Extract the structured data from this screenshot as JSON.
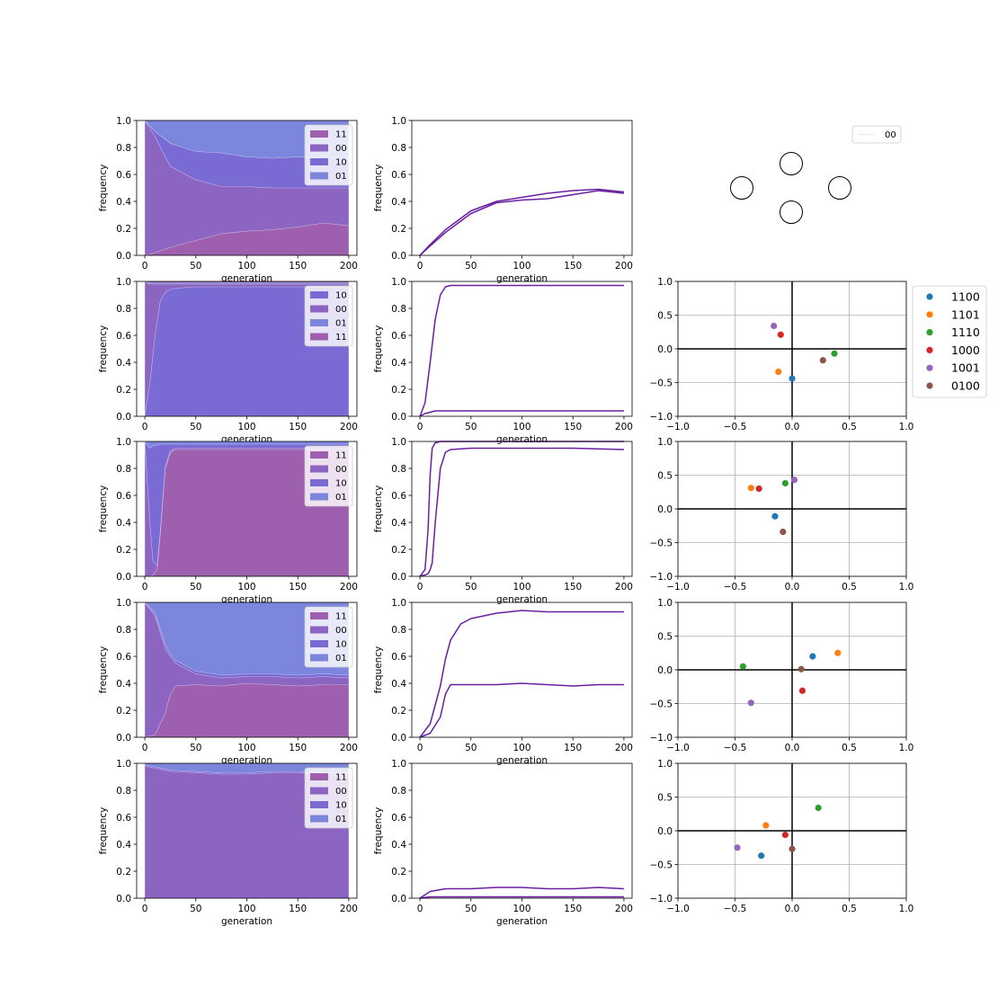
{
  "figure": {
    "xlabel": "generation",
    "ylabel": "frequency"
  },
  "colors": {
    "11": "#9e5fae",
    "00": "#8c64c2",
    "10": "#7a6bd4",
    "01": "#7c86dc",
    "line": "#6a1fa0",
    "scatter": {
      "1100": "#1f77b4",
      "1101": "#ff7f0e",
      "1110": "#2ca02c",
      "1000": "#d62728",
      "1001": "#9467bd",
      "0100": "#8c564b"
    }
  },
  "network_panel": {
    "legend": [
      "00"
    ],
    "nodes": 4
  },
  "scatter_legend": [
    "1100",
    "1101",
    "1110",
    "1000",
    "1001",
    "0100"
  ],
  "chart_data": [
    {
      "row": 0,
      "type": "area",
      "x": [
        0,
        10,
        25,
        50,
        75,
        100,
        125,
        150,
        175,
        200
      ],
      "xlim": [
        -8,
        208
      ],
      "ylim": [
        0,
        1
      ],
      "xticks": [
        0,
        50,
        100,
        150,
        200
      ],
      "yticks": [
        0.0,
        0.2,
        0.4,
        0.6,
        0.8,
        1.0
      ],
      "legend": [
        "11",
        "00",
        "10",
        "01"
      ],
      "stack_order": [
        "11",
        "00",
        "10",
        "01"
      ],
      "series": [
        {
          "name": "11",
          "values": [
            0.0,
            0.02,
            0.06,
            0.11,
            0.16,
            0.18,
            0.19,
            0.21,
            0.24,
            0.22
          ]
        },
        {
          "name": "00",
          "values": [
            1.0,
            0.86,
            0.6,
            0.45,
            0.35,
            0.33,
            0.31,
            0.29,
            0.26,
            0.28
          ]
        },
        {
          "name": "10",
          "values": [
            0.0,
            0.04,
            0.17,
            0.21,
            0.25,
            0.22,
            0.22,
            0.23,
            0.22,
            0.22
          ]
        },
        {
          "name": "01",
          "values": [
            0.0,
            0.08,
            0.17,
            0.23,
            0.24,
            0.27,
            0.28,
            0.27,
            0.28,
            0.28
          ]
        }
      ]
    },
    {
      "row": 0,
      "type": "line",
      "x": [
        0,
        10,
        25,
        50,
        75,
        100,
        125,
        150,
        175,
        200
      ],
      "xlim": [
        -8,
        208
      ],
      "ylim": [
        0,
        1
      ],
      "xticks": [
        0,
        50,
        100,
        150,
        200
      ],
      "yticks": [
        0.0,
        0.2,
        0.4,
        0.6,
        0.8,
        1.0
      ],
      "series": [
        {
          "values": [
            0.0,
            0.08,
            0.19,
            0.33,
            0.4,
            0.43,
            0.46,
            0.48,
            0.49,
            0.47
          ]
        },
        {
          "values": [
            0.0,
            0.07,
            0.17,
            0.31,
            0.39,
            0.41,
            0.42,
            0.45,
            0.48,
            0.46
          ]
        }
      ]
    },
    {
      "row": 1,
      "type": "area",
      "x": [
        0,
        5,
        10,
        15,
        20,
        25,
        30,
        50,
        100,
        150,
        200
      ],
      "xlim": [
        -8,
        208
      ],
      "ylim": [
        0,
        1
      ],
      "xticks": [
        0,
        50,
        100,
        150,
        200
      ],
      "yticks": [
        0.0,
        0.2,
        0.4,
        0.6,
        0.8,
        1.0
      ],
      "legend": [
        "10",
        "00",
        "01",
        "11"
      ],
      "stack_order": [
        "10",
        "00",
        "01",
        "11"
      ],
      "series": [
        {
          "name": "10",
          "values": [
            0.0,
            0.25,
            0.6,
            0.85,
            0.92,
            0.94,
            0.95,
            0.96,
            0.96,
            0.96,
            0.96
          ]
        },
        {
          "name": "00",
          "values": [
            1.0,
            0.73,
            0.38,
            0.13,
            0.06,
            0.04,
            0.03,
            0.02,
            0.02,
            0.02,
            0.02
          ]
        },
        {
          "name": "01",
          "values": [
            0.0,
            0.01,
            0.01,
            0.01,
            0.01,
            0.01,
            0.01,
            0.01,
            0.01,
            0.01,
            0.01
          ]
        },
        {
          "name": "11",
          "values": [
            0.0,
            0.01,
            0.01,
            0.01,
            0.01,
            0.01,
            0.01,
            0.01,
            0.01,
            0.01,
            0.01
          ]
        }
      ]
    },
    {
      "row": 1,
      "type": "line",
      "x": [
        0,
        5,
        10,
        15,
        20,
        25,
        30,
        35,
        50,
        100,
        150,
        200
      ],
      "xlim": [
        -8,
        208
      ],
      "ylim": [
        0,
        1
      ],
      "xticks": [
        0,
        50,
        100,
        150,
        200
      ],
      "yticks": [
        0.0,
        0.2,
        0.4,
        0.6,
        0.8,
        1.0
      ],
      "series": [
        {
          "values": [
            0.0,
            0.1,
            0.4,
            0.72,
            0.9,
            0.96,
            0.97,
            0.97,
            0.97,
            0.97,
            0.97,
            0.97
          ]
        },
        {
          "values": [
            0.0,
            0.02,
            0.03,
            0.04,
            0.04,
            0.04,
            0.04,
            0.04,
            0.04,
            0.04,
            0.04,
            0.04
          ]
        }
      ]
    },
    {
      "row": 1,
      "type": "scatter",
      "xlim": [
        -1,
        1
      ],
      "ylim": [
        -1,
        1
      ],
      "xticks": [
        -1.0,
        -0.5,
        0.0,
        0.5,
        1.0
      ],
      "yticks": [
        -1.0,
        -0.5,
        0.0,
        0.5,
        1.0
      ],
      "grid": true,
      "legend_position": "right",
      "points": [
        {
          "name": "1100",
          "x": 0.0,
          "y": -0.44
        },
        {
          "name": "1101",
          "x": -0.12,
          "y": -0.34
        },
        {
          "name": "1110",
          "x": 0.37,
          "y": -0.07
        },
        {
          "name": "1000",
          "x": -0.1,
          "y": 0.21
        },
        {
          "name": "1001",
          "x": -0.16,
          "y": 0.34
        },
        {
          "name": "0100",
          "x": 0.27,
          "y": -0.17
        }
      ]
    },
    {
      "row": 2,
      "type": "area",
      "x": [
        0,
        5,
        8,
        12,
        15,
        20,
        25,
        30,
        50,
        100,
        150,
        200
      ],
      "xlim": [
        -8,
        208
      ],
      "ylim": [
        0,
        1
      ],
      "xticks": [
        0,
        50,
        100,
        150,
        200
      ],
      "yticks": [
        0.0,
        0.2,
        0.4,
        0.6,
        0.8,
        1.0
      ],
      "legend": [
        "11",
        "00",
        "10",
        "01"
      ],
      "stack_order": [
        "11",
        "00",
        "10",
        "01"
      ],
      "series": [
        {
          "name": "11",
          "values": [
            0.0,
            0.0,
            0.01,
            0.05,
            0.3,
            0.8,
            0.92,
            0.94,
            0.94,
            0.94,
            0.94,
            0.94
          ]
        },
        {
          "name": "00",
          "values": [
            1.0,
            0.4,
            0.1,
            0.03,
            0.02,
            0.01,
            0.01,
            0.01,
            0.01,
            0.01,
            0.01,
            0.01
          ]
        },
        {
          "name": "10",
          "values": [
            0.0,
            0.55,
            0.86,
            0.89,
            0.66,
            0.17,
            0.05,
            0.03,
            0.03,
            0.03,
            0.03,
            0.03
          ]
        },
        {
          "name": "01",
          "values": [
            0.0,
            0.05,
            0.03,
            0.03,
            0.02,
            0.02,
            0.02,
            0.02,
            0.02,
            0.02,
            0.02,
            0.02
          ]
        }
      ]
    },
    {
      "row": 2,
      "type": "line",
      "x": [
        0,
        5,
        8,
        10,
        12,
        15,
        20,
        25,
        30,
        50,
        100,
        150,
        200
      ],
      "xlim": [
        -8,
        208
      ],
      "ylim": [
        0,
        1
      ],
      "xticks": [
        0,
        50,
        100,
        150,
        200
      ],
      "yticks": [
        0.0,
        0.2,
        0.4,
        0.6,
        0.8,
        1.0
      ],
      "series": [
        {
          "values": [
            0.0,
            0.05,
            0.35,
            0.75,
            0.95,
            0.99,
            1.0,
            1.0,
            1.0,
            1.0,
            1.0,
            1.0,
            1.0
          ]
        },
        {
          "values": [
            0.0,
            0.01,
            0.02,
            0.05,
            0.1,
            0.4,
            0.8,
            0.92,
            0.94,
            0.95,
            0.95,
            0.95,
            0.94
          ]
        }
      ]
    },
    {
      "row": 2,
      "type": "scatter",
      "xlim": [
        -1,
        1
      ],
      "ylim": [
        -1,
        1
      ],
      "xticks": [
        -1.0,
        -0.5,
        0.0,
        0.5,
        1.0
      ],
      "yticks": [
        -1.0,
        -0.5,
        0.0,
        0.5,
        1.0
      ],
      "grid": true,
      "points": [
        {
          "name": "1100",
          "x": -0.15,
          "y": -0.11
        },
        {
          "name": "1101",
          "x": -0.36,
          "y": 0.31
        },
        {
          "name": "1110",
          "x": -0.06,
          "y": 0.38
        },
        {
          "name": "1000",
          "x": -0.29,
          "y": 0.3
        },
        {
          "name": "1001",
          "x": 0.02,
          "y": 0.43
        },
        {
          "name": "0100",
          "x": -0.08,
          "y": -0.34
        }
      ]
    },
    {
      "row": 3,
      "type": "area",
      "x": [
        0,
        10,
        20,
        25,
        30,
        50,
        75,
        100,
        125,
        150,
        175,
        200
      ],
      "xlim": [
        -8,
        208
      ],
      "ylim": [
        0,
        1
      ],
      "xticks": [
        0,
        50,
        100,
        150,
        200
      ],
      "yticks": [
        0.0,
        0.2,
        0.4,
        0.6,
        0.8,
        1.0
      ],
      "legend": [
        "11",
        "00",
        "10",
        "01"
      ],
      "stack_order": [
        "11",
        "00",
        "10",
        "01"
      ],
      "series": [
        {
          "name": "11",
          "values": [
            0.0,
            0.02,
            0.18,
            0.32,
            0.38,
            0.39,
            0.38,
            0.4,
            0.39,
            0.38,
            0.39,
            0.39
          ]
        },
        {
          "name": "00",
          "values": [
            1.0,
            0.88,
            0.48,
            0.28,
            0.17,
            0.08,
            0.06,
            0.05,
            0.06,
            0.06,
            0.06,
            0.05
          ]
        },
        {
          "name": "10",
          "values": [
            0.0,
            0.02,
            0.03,
            0.02,
            0.02,
            0.02,
            0.02,
            0.02,
            0.02,
            0.02,
            0.02,
            0.02
          ]
        },
        {
          "name": "01",
          "values": [
            0.0,
            0.08,
            0.31,
            0.38,
            0.43,
            0.51,
            0.54,
            0.53,
            0.53,
            0.54,
            0.53,
            0.54
          ]
        }
      ]
    },
    {
      "row": 3,
      "type": "line",
      "x": [
        0,
        10,
        20,
        25,
        30,
        40,
        50,
        75,
        100,
        125,
        150,
        175,
        200
      ],
      "xlim": [
        -8,
        208
      ],
      "ylim": [
        0,
        1
      ],
      "xticks": [
        0,
        50,
        100,
        150,
        200
      ],
      "yticks": [
        0.0,
        0.2,
        0.4,
        0.6,
        0.8,
        1.0
      ],
      "series": [
        {
          "values": [
            0.0,
            0.1,
            0.38,
            0.58,
            0.72,
            0.84,
            0.88,
            0.92,
            0.94,
            0.93,
            0.93,
            0.93,
            0.93
          ]
        },
        {
          "values": [
            0.0,
            0.03,
            0.15,
            0.32,
            0.39,
            0.39,
            0.39,
            0.39,
            0.4,
            0.39,
            0.38,
            0.39,
            0.39
          ]
        }
      ]
    },
    {
      "row": 3,
      "type": "scatter",
      "xlim": [
        -1,
        1
      ],
      "ylim": [
        -1,
        1
      ],
      "xticks": [
        -1.0,
        -0.5,
        0.0,
        0.5,
        1.0
      ],
      "yticks": [
        -1.0,
        -0.5,
        0.0,
        0.5,
        1.0
      ],
      "grid": true,
      "points": [
        {
          "name": "1100",
          "x": 0.18,
          "y": 0.2
        },
        {
          "name": "1101",
          "x": 0.4,
          "y": 0.25
        },
        {
          "name": "1110",
          "x": -0.43,
          "y": 0.05
        },
        {
          "name": "1000",
          "x": 0.09,
          "y": -0.31
        },
        {
          "name": "1001",
          "x": -0.36,
          "y": -0.49
        },
        {
          "name": "0100",
          "x": 0.08,
          "y": 0.01
        }
      ]
    },
    {
      "row": 4,
      "type": "area",
      "x": [
        0,
        25,
        50,
        75,
        100,
        125,
        150,
        175,
        200
      ],
      "xlim": [
        -8,
        208
      ],
      "ylim": [
        0,
        1
      ],
      "xticks": [
        0,
        50,
        100,
        150,
        200
      ],
      "yticks": [
        0.0,
        0.2,
        0.4,
        0.6,
        0.8,
        1.0
      ],
      "legend": [
        "11",
        "00",
        "10",
        "01"
      ],
      "stack_order": [
        "11",
        "00",
        "10",
        "01"
      ],
      "series": [
        {
          "name": "11",
          "values": [
            0.0,
            0.0,
            0.0,
            0.0,
            0.0,
            0.0,
            0.0,
            0.0,
            0.0
          ]
        },
        {
          "name": "00",
          "values": [
            0.98,
            0.94,
            0.93,
            0.92,
            0.92,
            0.93,
            0.93,
            0.92,
            0.92
          ]
        },
        {
          "name": "10",
          "values": [
            0.01,
            0.01,
            0.01,
            0.01,
            0.01,
            0.01,
            0.01,
            0.01,
            0.01
          ]
        },
        {
          "name": "01",
          "values": [
            0.01,
            0.05,
            0.06,
            0.07,
            0.07,
            0.06,
            0.06,
            0.07,
            0.07
          ]
        }
      ]
    },
    {
      "row": 4,
      "type": "line",
      "x": [
        0,
        10,
        25,
        50,
        75,
        100,
        125,
        150,
        175,
        200
      ],
      "xlim": [
        -8,
        208
      ],
      "ylim": [
        0,
        1
      ],
      "xticks": [
        0,
        50,
        100,
        150,
        200
      ],
      "yticks": [
        0.0,
        0.2,
        0.4,
        0.6,
        0.8,
        1.0
      ],
      "series": [
        {
          "values": [
            0.0,
            0.05,
            0.07,
            0.07,
            0.08,
            0.08,
            0.07,
            0.07,
            0.08,
            0.07
          ]
        },
        {
          "values": [
            0.0,
            0.01,
            0.01,
            0.01,
            0.01,
            0.01,
            0.01,
            0.01,
            0.01,
            0.01
          ]
        }
      ]
    },
    {
      "row": 4,
      "type": "scatter",
      "xlim": [
        -1,
        1
      ],
      "ylim": [
        -1,
        1
      ],
      "xticks": [
        -1.0,
        -0.5,
        0.0,
        0.5,
        1.0
      ],
      "yticks": [
        -1.0,
        -0.5,
        0.0,
        0.5,
        1.0
      ],
      "grid": true,
      "points": [
        {
          "name": "1100",
          "x": -0.27,
          "y": -0.37
        },
        {
          "name": "1101",
          "x": -0.23,
          "y": 0.08
        },
        {
          "name": "1110",
          "x": 0.23,
          "y": 0.34
        },
        {
          "name": "1000",
          "x": -0.06,
          "y": -0.06
        },
        {
          "name": "1001",
          "x": -0.48,
          "y": -0.25
        },
        {
          "name": "0100",
          "x": 0.0,
          "y": -0.27
        }
      ]
    }
  ]
}
